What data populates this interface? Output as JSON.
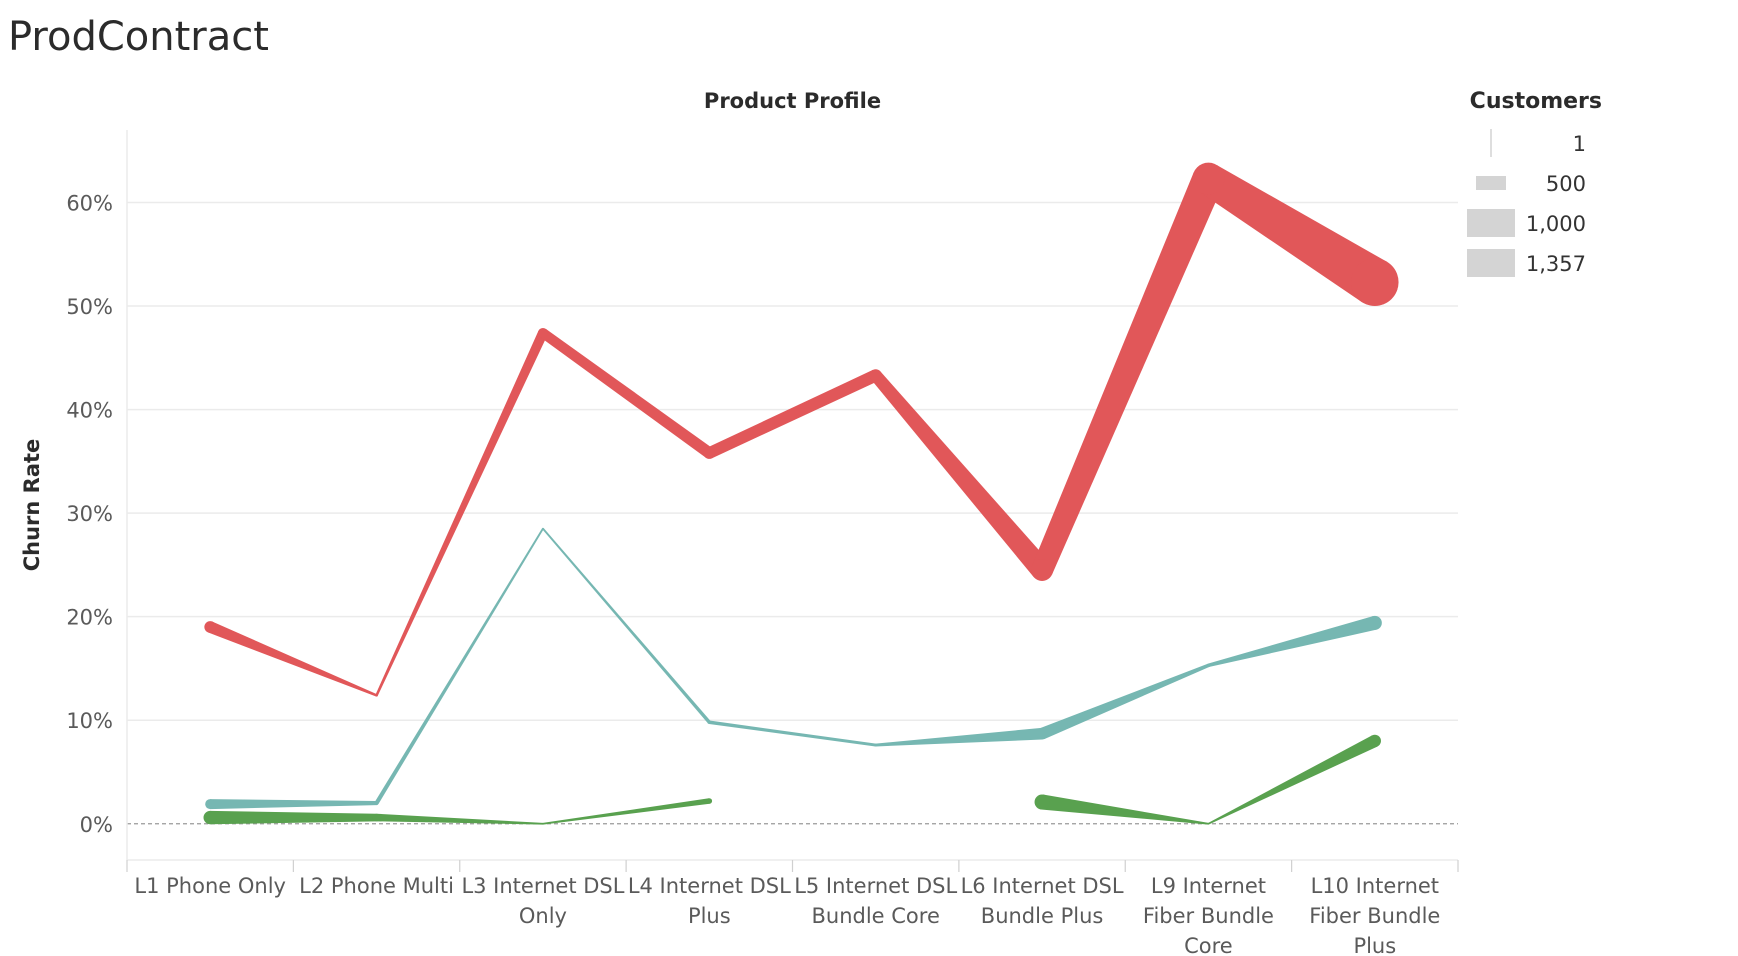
{
  "sheet_title": "ProdContract",
  "colors": {
    "series_1": "#e15759",
    "series_2": "#76b7b2",
    "series_3": "#59a14f",
    "grid": "#ebebeb",
    "zero_line": "#9a9a9a",
    "legend_swatch": "#d4d4d4"
  },
  "chart_data": {
    "type": "line",
    "title": "",
    "column_header": "Product Profile",
    "ylabel": "Churn Rate",
    "ylim": [
      -0.035,
      0.67
    ],
    "y_ticks": [
      {
        "value": 0.0,
        "label": "0%"
      },
      {
        "value": 0.1,
        "label": "10%"
      },
      {
        "value": 0.2,
        "label": "20%"
      },
      {
        "value": 0.3,
        "label": "30%"
      },
      {
        "value": 0.4,
        "label": "40%"
      },
      {
        "value": 0.5,
        "label": "50%"
      },
      {
        "value": 0.6,
        "label": "60%"
      }
    ],
    "grid": true,
    "categories": [
      [
        "L1 Phone Only"
      ],
      [
        "L2 Phone Multi"
      ],
      [
        "L3 Internet DSL",
        "Only"
      ],
      [
        "L4 Internet DSL",
        "Plus"
      ],
      [
        "L5 Internet DSL",
        "Bundle Core"
      ],
      [
        "L6 Internet DSL",
        "Bundle Plus"
      ],
      [
        "L9 Internet",
        "Fiber Bundle",
        "Core"
      ],
      [
        "L10 Internet",
        "Fiber Bundle",
        "Plus"
      ]
    ],
    "size_legend": {
      "title": "Customers",
      "entries": [
        {
          "label": "1",
          "value": 1
        },
        {
          "label": "500",
          "value": 500
        },
        {
          "label": "1,000",
          "value": 1000
        },
        {
          "label": "1,357",
          "value": 1357
        }
      ]
    },
    "series": [
      {
        "color_key": "series_1",
        "values": [
          0.19,
          0.124,
          0.474,
          0.358,
          0.433,
          0.245,
          0.623,
          0.523
        ],
        "customers": [
          300,
          30,
          250,
          300,
          320,
          600,
          900,
          1357
        ]
      },
      {
        "color_key": "series_2",
        "values": [
          0.019,
          0.02,
          0.285,
          0.098,
          0.076,
          0.087,
          0.153,
          0.194
        ],
        "customers": [
          250,
          80,
          10,
          60,
          40,
          300,
          60,
          370
        ]
      },
      {
        "color_key": "series_3",
        "values": [
          0.006,
          0.006,
          0.0,
          0.022,
          null,
          0.021,
          0.0,
          0.08
        ],
        "customers": [
          350,
          180,
          5,
          120,
          null,
          400,
          5,
          320
        ]
      }
    ]
  }
}
